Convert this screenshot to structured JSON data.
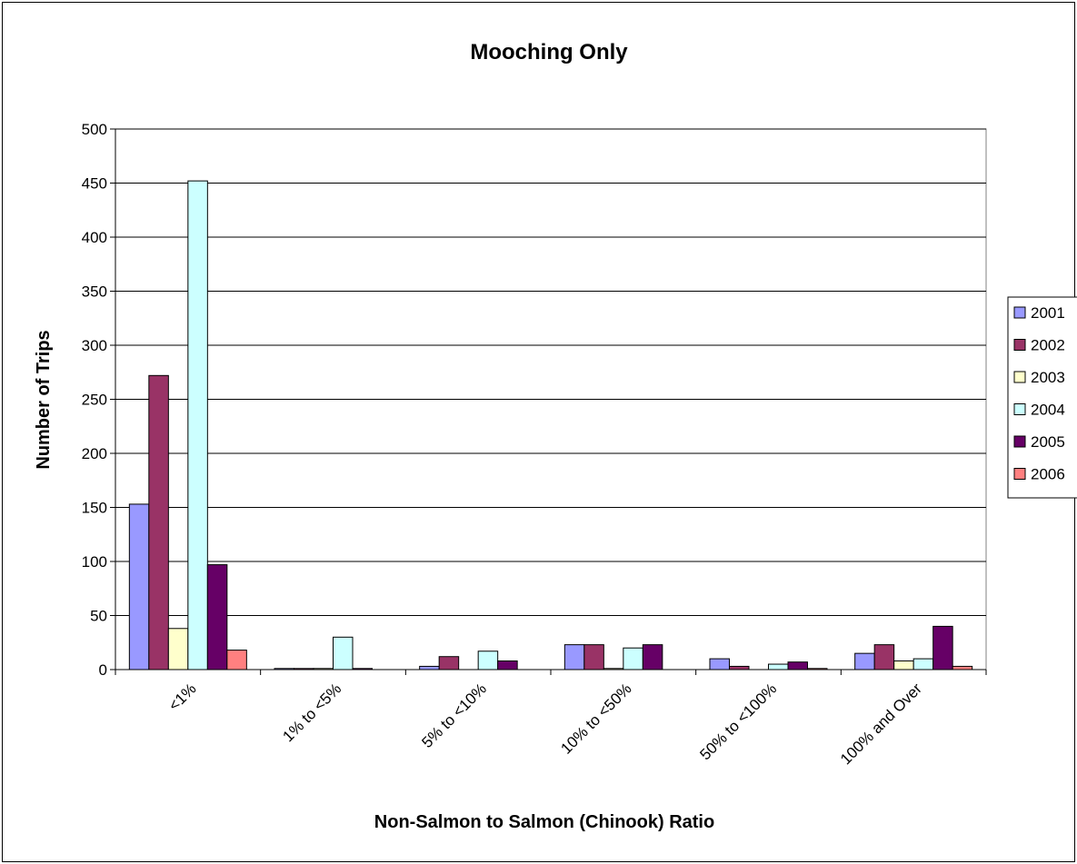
{
  "chart_data": {
    "type": "bar",
    "title": "Mooching Only",
    "xlabel": "Non-Salmon to Salmon (Chinook) Ratio",
    "ylabel": "Number of Trips",
    "ylim": [
      0,
      500
    ],
    "yticks": [
      0,
      50,
      100,
      150,
      200,
      250,
      300,
      350,
      400,
      450,
      500
    ],
    "grid": true,
    "legend_position": "right",
    "categories": [
      "<1%",
      "1% to <5%",
      "5% to <10%",
      "10% to <50%",
      "50% to <100%",
      "100% and Over"
    ],
    "series": [
      {
        "name": "2001",
        "color": "#9999ff",
        "values": [
          153,
          1,
          3,
          23,
          10,
          15
        ]
      },
      {
        "name": "2002",
        "color": "#993366",
        "values": [
          272,
          1,
          12,
          23,
          3,
          23
        ]
      },
      {
        "name": "2003",
        "color": "#ffffcc",
        "values": [
          38,
          1,
          0,
          1,
          0,
          8
        ]
      },
      {
        "name": "2004",
        "color": "#ccffff",
        "values": [
          452,
          30,
          17,
          20,
          5,
          10
        ]
      },
      {
        "name": "2005",
        "color": "#660066",
        "values": [
          97,
          1,
          8,
          23,
          7,
          40
        ]
      },
      {
        "name": "2006",
        "color": "#ff8080",
        "values": [
          18,
          0,
          0,
          0,
          1,
          3
        ]
      }
    ]
  }
}
